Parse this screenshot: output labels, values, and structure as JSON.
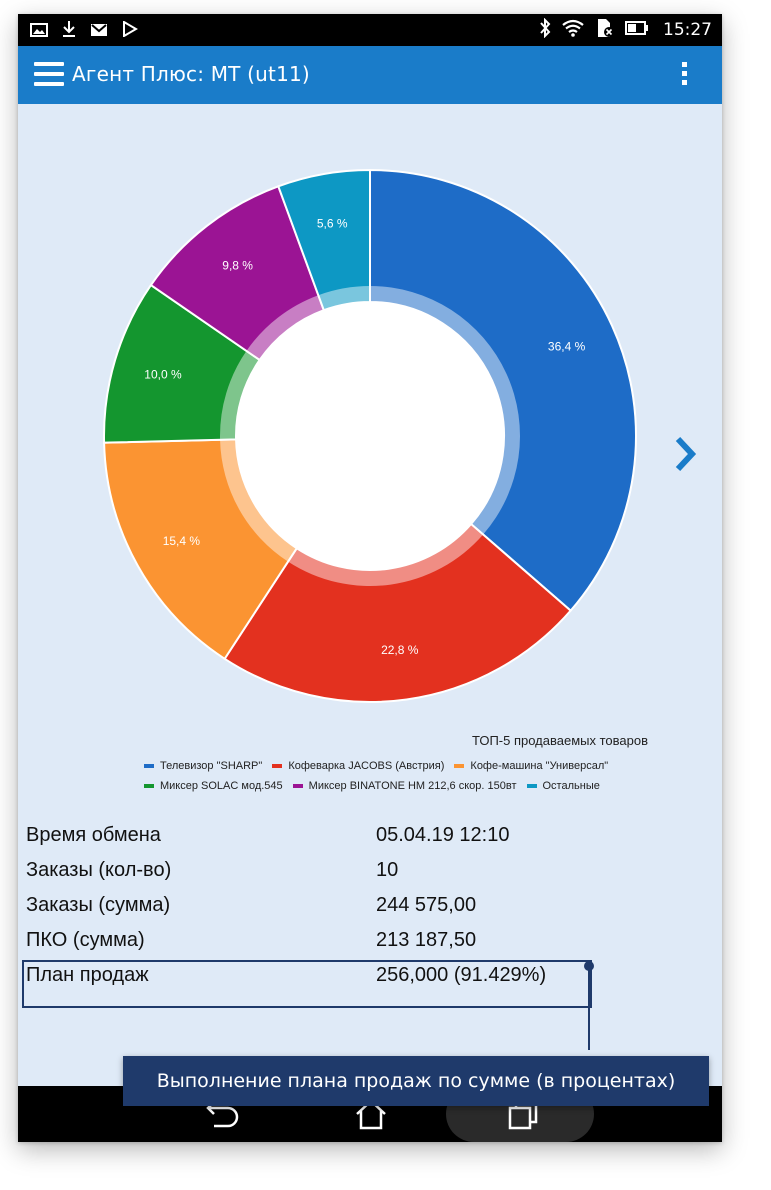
{
  "status_bar": {
    "time": "15:27",
    "left_icons": [
      "image-icon",
      "download-icon",
      "mail-icon",
      "play-store-icon"
    ],
    "right_icons": [
      "bluetooth-icon",
      "wifi-icon",
      "sim-icon",
      "battery-icon"
    ]
  },
  "app_bar": {
    "title": "Агент Плюс: МТ (ut11)",
    "menu_icon": "hamburger-menu-icon",
    "overflow_icon": "more-vert-icon"
  },
  "chart_data": {
    "type": "pie",
    "title": "ТОП-5 продаваемых товаров",
    "categories": [
      "Телевизор \"SHARP\"",
      "Кофеварка JACOBS (Австрия)",
      "Кофе-машина \"Универсал\"",
      "Миксер SOLAC мод.545",
      "Миксер BINATONE HM 212,6 скор. 150вт",
      "Остальные"
    ],
    "values": [
      36.4,
      22.8,
      15.4,
      10.0,
      9.8,
      5.6
    ],
    "labels": [
      "36,4 %",
      "22,8 %",
      "15,4 %",
      "10,0 %",
      "9,8 %",
      "5,6 %"
    ],
    "colors": [
      "#1e6cc7",
      "#e3311f",
      "#fb9432",
      "#14962f",
      "#9b1494",
      "#0d98c4"
    ],
    "donut": true,
    "legend_position": "bottom"
  },
  "navigation": {
    "next_icon": "chevron-right-icon"
  },
  "info": {
    "rows": [
      {
        "label": "Время обмена",
        "value": "05.04.19 12:10"
      },
      {
        "label": "Заказы (кол-во)",
        "value": "10"
      },
      {
        "label": "Заказы (сумма)",
        "value": "244 575,00"
      },
      {
        "label": "ПКО (сумма)",
        "value": "213 187,50"
      },
      {
        "label": "План продаж",
        "value": "256,000 (91.429%)"
      }
    ]
  },
  "callout": {
    "text": "Выполнение плана продаж по сумме (в процентах)"
  },
  "nav_bar": {
    "back_icon": "back-icon",
    "home_icon": "home-icon",
    "recents_icon": "recents-icon"
  }
}
